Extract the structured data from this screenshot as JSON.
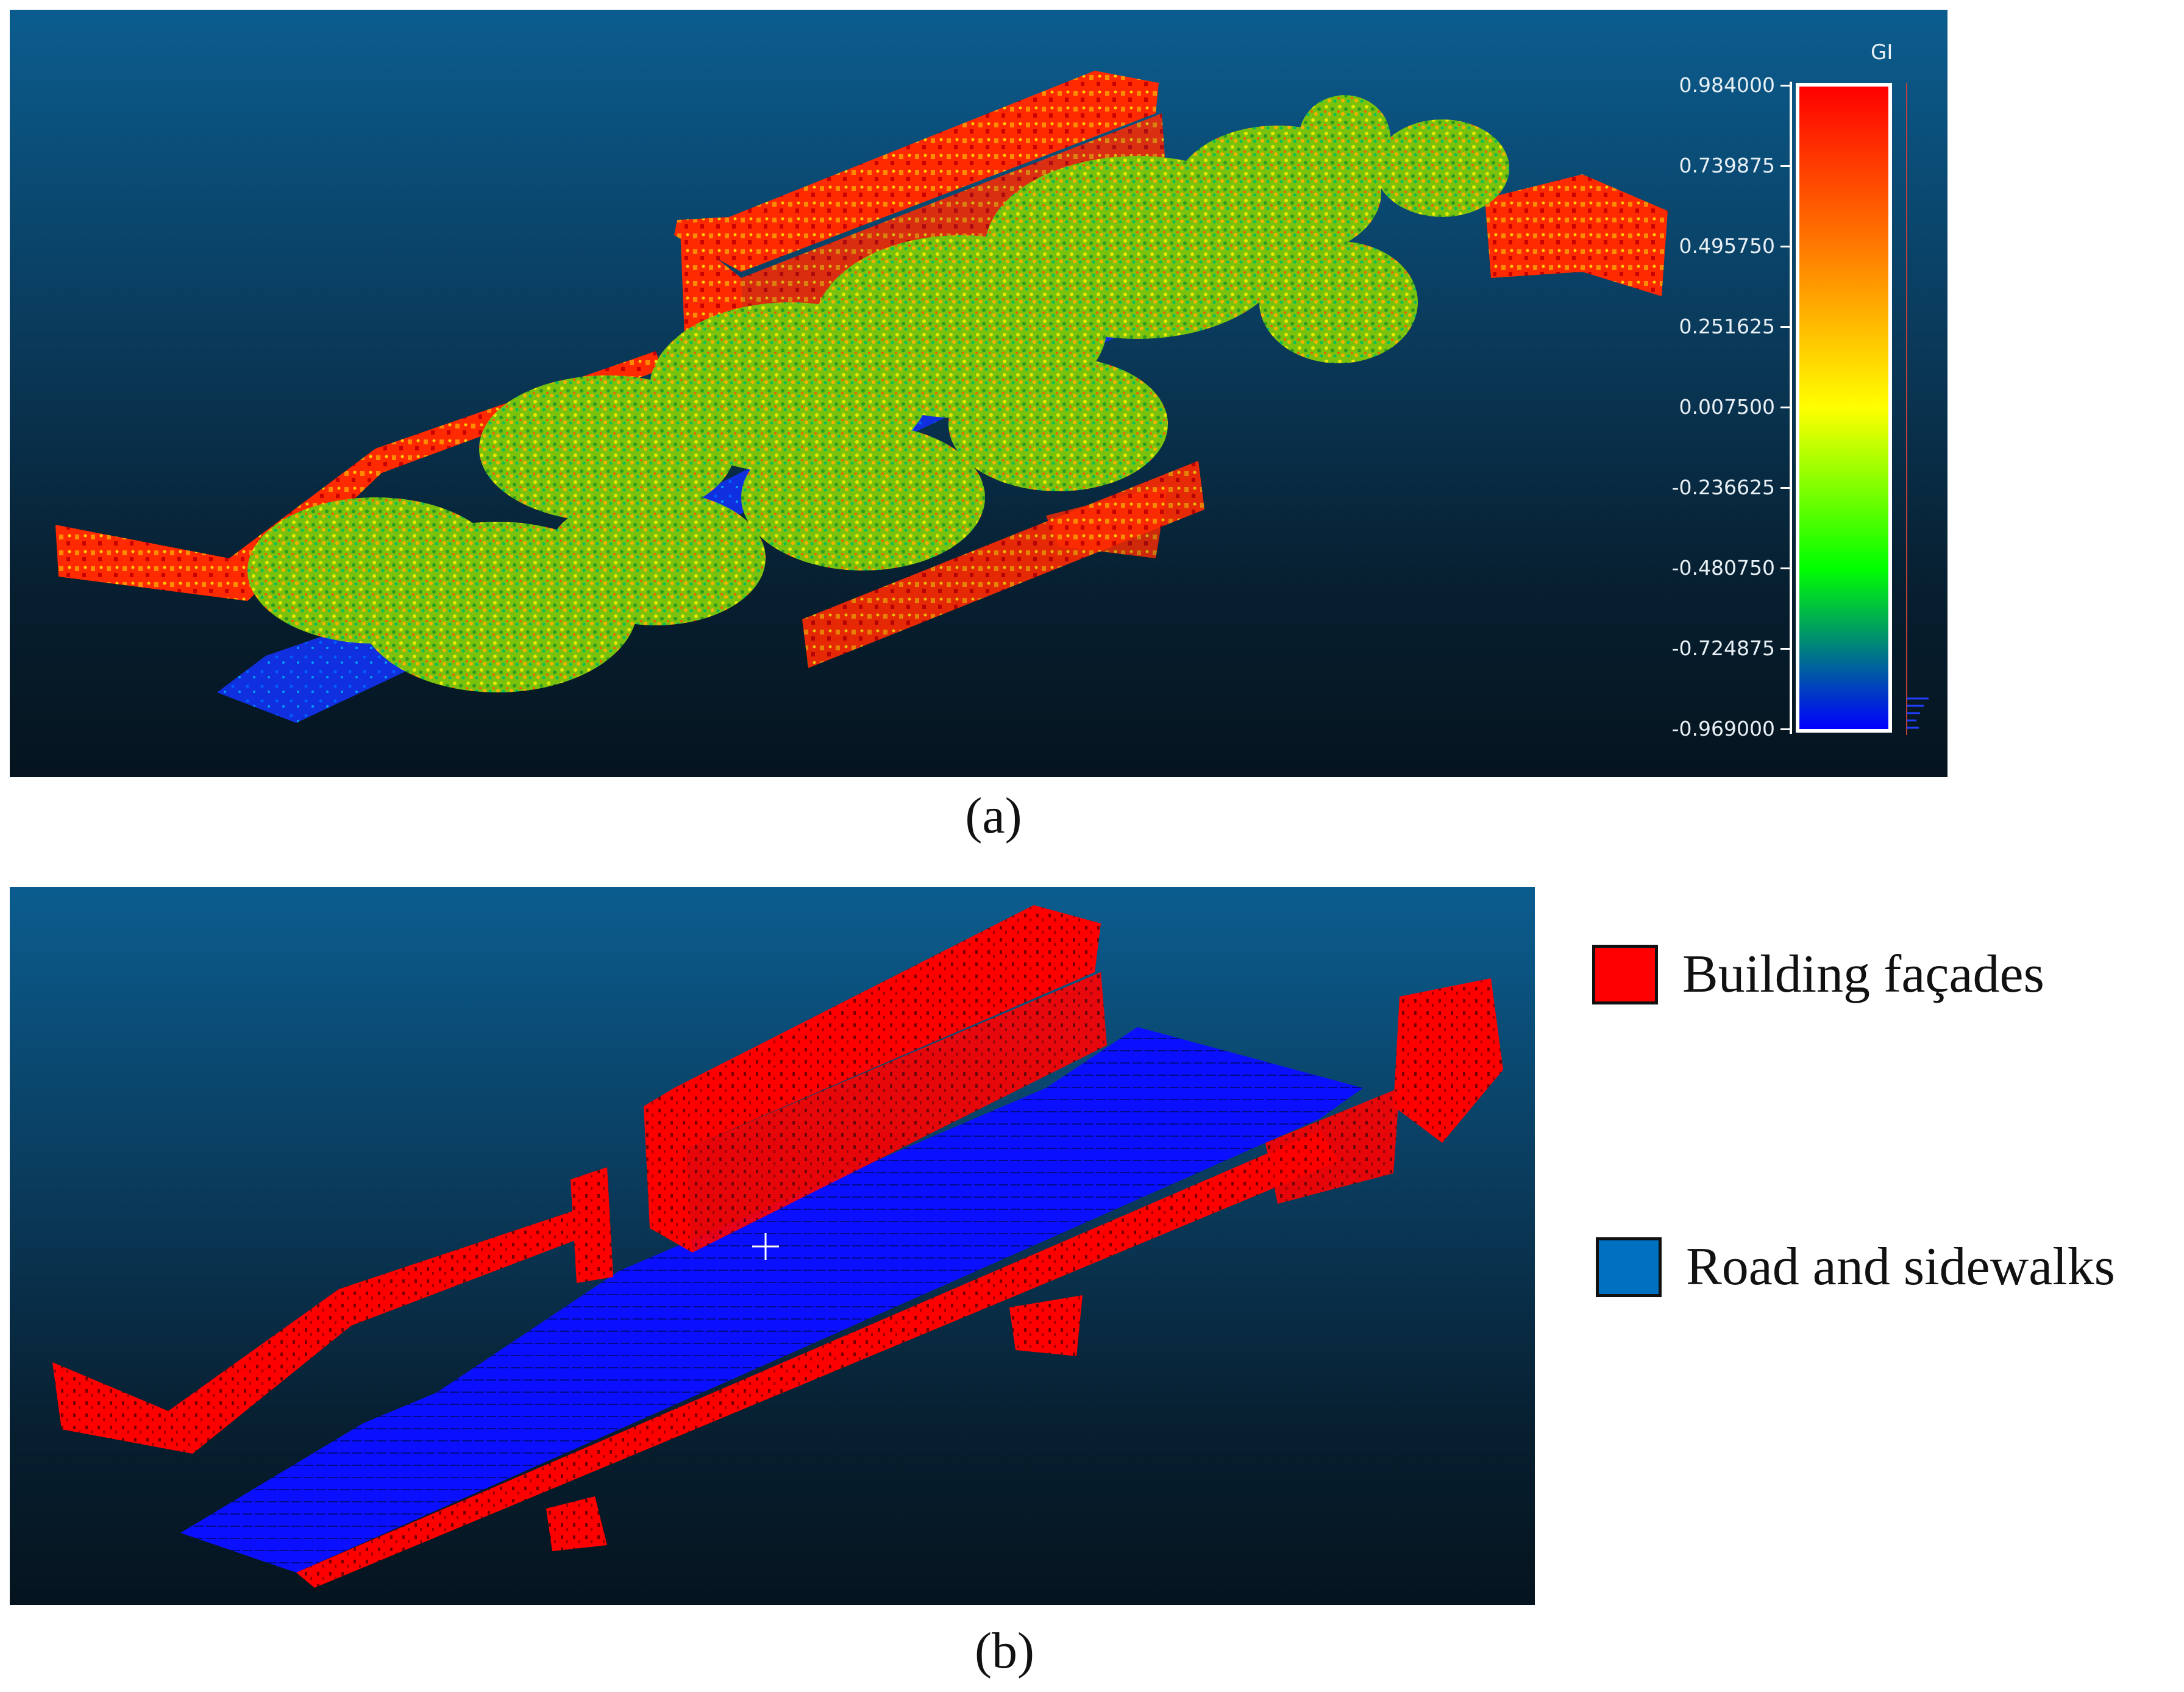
{
  "panel_a": {
    "caption": "(a)",
    "scale": {
      "title": "GI",
      "ticks": [
        "0.984000",
        "0.739875",
        "0.495750",
        "0.251625",
        "0.007500",
        "-0.236625",
        "-0.480750",
        "-0.724875",
        "-0.969000"
      ],
      "gradient": [
        "#ff0000",
        "#ff7a00",
        "#ffff00",
        "#00ff00",
        "#0000ff"
      ]
    }
  },
  "panel_b": {
    "caption": "(b)",
    "legend": [
      {
        "label": "Building façades",
        "color": "#ff0000"
      },
      {
        "label": "Road and sidewalks",
        "color": "#0070c0"
      }
    ]
  }
}
